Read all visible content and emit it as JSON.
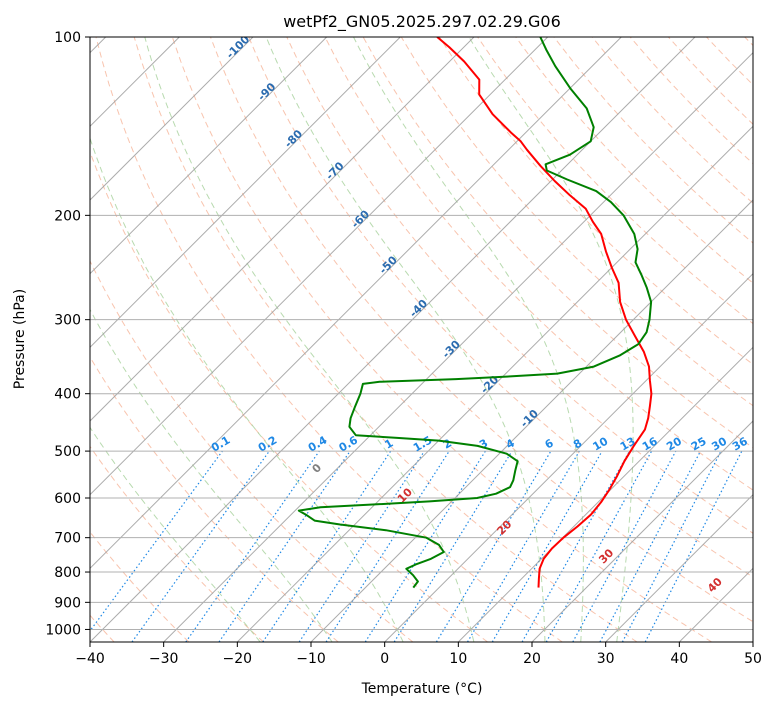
{
  "chart_data": {
    "type": "line",
    "title": "wetPf2_GN05.2025.297.02.29.G06",
    "xlabel": "Temperature (°C)",
    "ylabel": "Pressure (hPa)",
    "xlim": [
      -40,
      50
    ],
    "ylim": [
      1050,
      100
    ],
    "y_scale": "log",
    "grid": true,
    "skew": true,
    "x_ticks": [
      -40,
      -30,
      -20,
      -10,
      0,
      10,
      20,
      30,
      40,
      50
    ],
    "y_ticks": [
      100,
      200,
      300,
      400,
      500,
      600,
      700,
      800,
      900,
      1000
    ],
    "series": [
      {
        "role": "temperature",
        "color": "#ff0000",
        "points": [
          {
            "p": 850,
            "t": 13.5
          },
          {
            "p": 820,
            "t": 12.3
          },
          {
            "p": 790,
            "t": 11.1
          },
          {
            "p": 760,
            "t": 10.3
          },
          {
            "p": 730,
            "t": 10.0
          },
          {
            "p": 700,
            "t": 10.1
          },
          {
            "p": 670,
            "t": 10.5
          },
          {
            "p": 640,
            "t": 10.7
          },
          {
            "p": 610,
            "t": 10.4
          },
          {
            "p": 580,
            "t": 9.8
          },
          {
            "p": 550,
            "t": 9.0
          },
          {
            "p": 520,
            "t": 8.0
          },
          {
            "p": 490,
            "t": 7.2
          },
          {
            "p": 460,
            "t": 6.5
          },
          {
            "p": 440,
            "t": 5.4
          },
          {
            "p": 420,
            "t": 4.0
          },
          {
            "p": 400,
            "t": 2.5
          },
          {
            "p": 380,
            "t": 0.5
          },
          {
            "p": 360,
            "t": -1.5
          },
          {
            "p": 340,
            "t": -4.2
          },
          {
            "p": 320,
            "t": -7.5
          },
          {
            "p": 300,
            "t": -11.0
          },
          {
            "p": 280,
            "t": -14.2
          },
          {
            "p": 260,
            "t": -17.0
          },
          {
            "p": 245,
            "t": -20.0
          },
          {
            "p": 230,
            "t": -23.0
          },
          {
            "p": 215,
            "t": -26.0
          },
          {
            "p": 205,
            "t": -28.8
          },
          {
            "p": 195,
            "t": -31.5
          },
          {
            "p": 185,
            "t": -35.5
          },
          {
            "p": 175,
            "t": -39.5
          },
          {
            "p": 165,
            "t": -43.5
          },
          {
            "p": 155,
            "t": -47.5
          },
          {
            "p": 150,
            "t": -49.5
          },
          {
            "p": 145,
            "t": -52.0
          },
          {
            "p": 135,
            "t": -57.0
          },
          {
            "p": 125,
            "t": -61.5
          },
          {
            "p": 118,
            "t": -63.5
          },
          {
            "p": 110,
            "t": -68.0
          },
          {
            "p": 104,
            "t": -72.0
          },
          {
            "p": 100,
            "t": -75.0
          }
        ]
      },
      {
        "role": "dewpoint",
        "color": "#008000",
        "points": [
          {
            "p": 850,
            "t": -3.5
          },
          {
            "p": 830,
            "t": -3.7
          },
          {
            "p": 810,
            "t": -5.2
          },
          {
            "p": 790,
            "t": -7.0
          },
          {
            "p": 775,
            "t": -6.2
          },
          {
            "p": 760,
            "t": -5.0
          },
          {
            "p": 740,
            "t": -4.2
          },
          {
            "p": 720,
            "t": -5.8
          },
          {
            "p": 700,
            "t": -8.5
          },
          {
            "p": 680,
            "t": -15.0
          },
          {
            "p": 665,
            "t": -22.0
          },
          {
            "p": 655,
            "t": -26.0
          },
          {
            "p": 640,
            "t": -28.0
          },
          {
            "p": 630,
            "t": -29.5
          },
          {
            "p": 622,
            "t": -27.0
          },
          {
            "p": 615,
            "t": -20.0
          },
          {
            "p": 608,
            "t": -13.0
          },
          {
            "p": 600,
            "t": -7.0
          },
          {
            "p": 590,
            "t": -5.0
          },
          {
            "p": 575,
            "t": -4.0
          },
          {
            "p": 560,
            "t": -4.5
          },
          {
            "p": 540,
            "t": -5.5
          },
          {
            "p": 520,
            "t": -6.5
          },
          {
            "p": 505,
            "t": -9.0
          },
          {
            "p": 490,
            "t": -14.0
          },
          {
            "p": 480,
            "t": -20.0
          },
          {
            "p": 475,
            "t": -26.0
          },
          {
            "p": 470,
            "t": -32.0
          },
          {
            "p": 455,
            "t": -34.0
          },
          {
            "p": 440,
            "t": -35.0
          },
          {
            "p": 420,
            "t": -36.0
          },
          {
            "p": 400,
            "t": -37.0
          },
          {
            "p": 385,
            "t": -38.0
          },
          {
            "p": 382,
            "t": -36.0
          },
          {
            "p": 378,
            "t": -26.0
          },
          {
            "p": 374,
            "t": -19.0
          },
          {
            "p": 370,
            "t": -13.0
          },
          {
            "p": 360,
            "t": -9.0
          },
          {
            "p": 345,
            "t": -7.0
          },
          {
            "p": 330,
            "t": -6.0
          },
          {
            "p": 315,
            "t": -6.5
          },
          {
            "p": 300,
            "t": -7.8
          },
          {
            "p": 280,
            "t": -10.0
          },
          {
            "p": 265,
            "t": -12.5
          },
          {
            "p": 252,
            "t": -15.0
          },
          {
            "p": 240,
            "t": -17.5
          },
          {
            "p": 228,
            "t": -19.0
          },
          {
            "p": 215,
            "t": -21.5
          },
          {
            "p": 200,
            "t": -25.5
          },
          {
            "p": 190,
            "t": -29.0
          },
          {
            "p": 182,
            "t": -32.5
          },
          {
            "p": 174,
            "t": -38.0
          },
          {
            "p": 168,
            "t": -42.0
          },
          {
            "p": 164,
            "t": -43.0
          },
          {
            "p": 158,
            "t": -41.0
          },
          {
            "p": 150,
            "t": -40.0
          },
          {
            "p": 142,
            "t": -41.5
          },
          {
            "p": 132,
            "t": -45.0
          },
          {
            "p": 122,
            "t": -50.0
          },
          {
            "p": 112,
            "t": -55.0
          },
          {
            "p": 105,
            "t": -58.5
          },
          {
            "p": 100,
            "t": -61.0
          }
        ]
      }
    ],
    "isotherm_labels": [
      "-100",
      "-90",
      "-80",
      "-70",
      "-60",
      "-50",
      "-40",
      "-30",
      "-20",
      "-10"
    ],
    "mixing_ratio_labels": [
      "0.1",
      "0.2",
      "0.4",
      "0.6",
      "1",
      "1.5",
      "2",
      "3",
      "4",
      "6",
      "8",
      "10",
      "13",
      "16",
      "20",
      "25",
      "30",
      "36"
    ],
    "dry_adiabat_labels": [
      "0",
      "10",
      "20",
      "30",
      "40"
    ]
  }
}
